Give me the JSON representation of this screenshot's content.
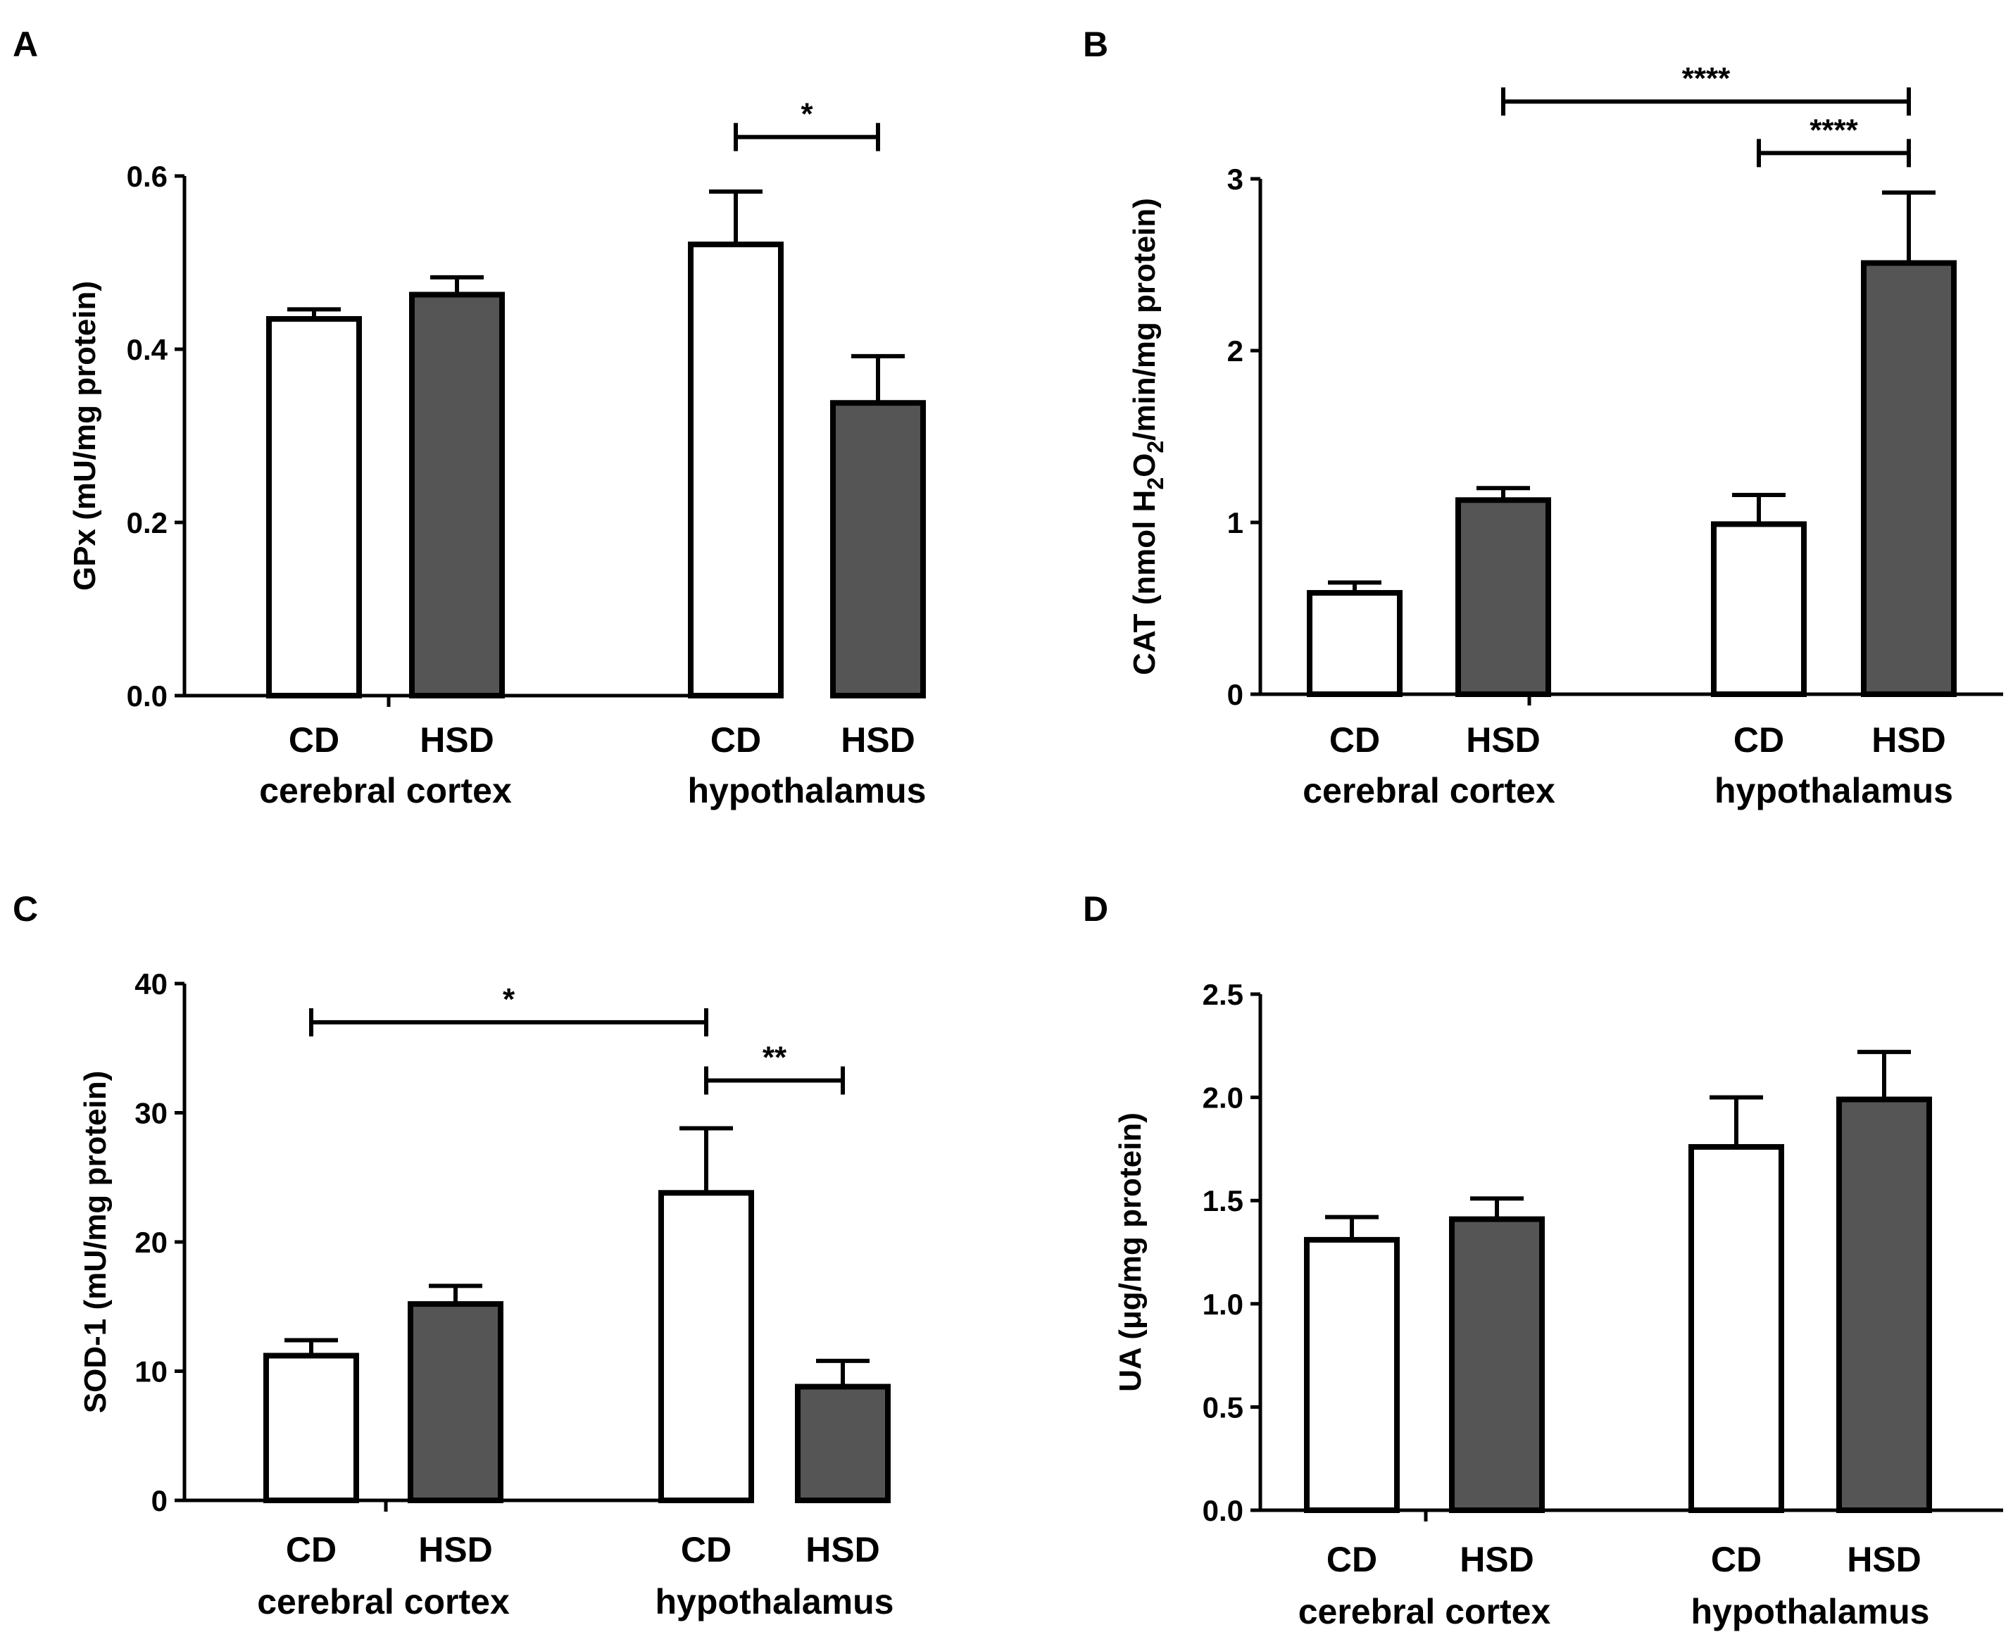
{
  "chart_data": [
    {
      "type": "bar",
      "panel": "A",
      "ylabel": "GPx (mU/mg protein)",
      "ylim": [
        0,
        0.6
      ],
      "yticks": [
        0.0,
        0.2,
        0.4,
        0.6
      ],
      "ytick_labels": [
        "0.0",
        "0.2",
        "0.4",
        "0.6"
      ],
      "categories": [
        "CD",
        "HSD",
        "CD",
        "HSD"
      ],
      "groups": [
        "cerebral cortex",
        "hypothalamus"
      ],
      "values": [
        0.435,
        0.463,
        0.521,
        0.338
      ],
      "errors": [
        0.011,
        0.02,
        0.061,
        0.054
      ],
      "fills": [
        "#ffffff",
        "#555555",
        "#ffffff",
        "#555555"
      ],
      "significance": [
        {
          "from": 2,
          "to": 3,
          "level": 0.645,
          "label": "*"
        }
      ]
    },
    {
      "type": "bar",
      "panel": "B",
      "ylabel_parts": [
        "CAT (nmol H",
        "2",
        "O",
        "2",
        "/min/mg protein)"
      ],
      "ylim": [
        0,
        3
      ],
      "yticks": [
        0,
        1,
        2,
        3
      ],
      "ytick_labels": [
        "0",
        "1",
        "2",
        "3"
      ],
      "categories": [
        "CD",
        "HSD",
        "CD",
        "HSD"
      ],
      "groups": [
        "cerebral cortex",
        "hypothalamus"
      ],
      "values": [
        0.59,
        1.13,
        0.99,
        2.51
      ],
      "errors": [
        0.06,
        0.07,
        0.17,
        0.41
      ],
      "fills": [
        "#ffffff",
        "#555555",
        "#ffffff",
        "#555555"
      ],
      "significance": [
        {
          "from": 1,
          "to": 3,
          "level": 3.45,
          "label": "****"
        },
        {
          "from": 2,
          "to": 3,
          "level": 3.15,
          "label": "****"
        }
      ]
    },
    {
      "type": "bar",
      "panel": "C",
      "ylabel": "SOD-1 (mU/mg protein)",
      "ylim": [
        0,
        40
      ],
      "yticks": [
        0,
        10,
        20,
        30,
        40
      ],
      "ytick_labels": [
        "0",
        "10",
        "20",
        "30",
        "40"
      ],
      "categories": [
        "CD",
        "HSD",
        "CD",
        "HSD"
      ],
      "groups": [
        "cerebral cortex",
        "hypothalamus"
      ],
      "values": [
        11.2,
        15.2,
        23.8,
        8.8
      ],
      "errors": [
        1.2,
        1.4,
        5.0,
        2.0
      ],
      "fills": [
        "#ffffff",
        "#555555",
        "#ffffff",
        "#555555"
      ],
      "significance": [
        {
          "from": 0,
          "to": 2,
          "level": 37.0,
          "label": "*"
        },
        {
          "from": 2,
          "to": 3,
          "level": 32.5,
          "label": "**"
        }
      ]
    },
    {
      "type": "bar",
      "panel": "D",
      "ylabel": "UA (μg/mg protein)",
      "ylim": [
        0,
        2.5
      ],
      "yticks": [
        0.0,
        0.5,
        1.0,
        1.5,
        2.0,
        2.5
      ],
      "ytick_labels": [
        "0.0",
        "0.5",
        "1.0",
        "1.5",
        "2.0",
        "2.5"
      ],
      "categories": [
        "CD",
        "HSD",
        "CD",
        "HSD"
      ],
      "groups": [
        "cerebral cortex",
        "hypothalamus"
      ],
      "values": [
        1.31,
        1.41,
        1.76,
        1.99
      ],
      "errors": [
        0.11,
        0.1,
        0.24,
        0.23
      ],
      "fills": [
        "#ffffff",
        "#555555",
        "#ffffff",
        "#555555"
      ],
      "significance": []
    }
  ]
}
